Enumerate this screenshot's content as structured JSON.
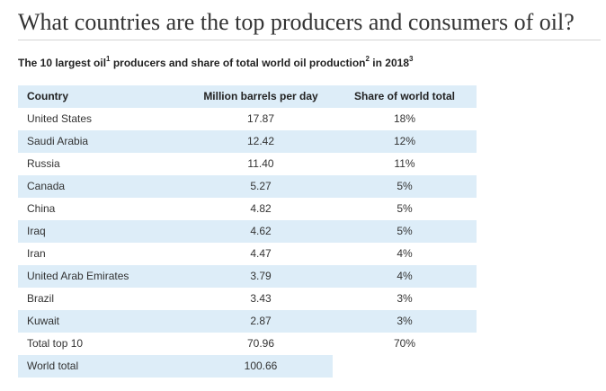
{
  "page": {
    "title": "What countries are the top producers and consumers of oil?"
  },
  "table": {
    "caption": {
      "part1": "The 10 largest oil",
      "sup1": "1",
      "part2": " producers and share of total world oil production",
      "sup2": "2",
      "part3": " in 2018",
      "sup3": "3"
    },
    "headers": {
      "country": "Country",
      "mbpd": "Million barrels per day",
      "share": "Share of world total"
    },
    "rows": [
      {
        "country": "United States",
        "mbpd": "17.87",
        "share": "18%"
      },
      {
        "country": "Saudi Arabia",
        "mbpd": "12.42",
        "share": "12%"
      },
      {
        "country": "Russia",
        "mbpd": "11.40",
        "share": "11%"
      },
      {
        "country": "Canada",
        "mbpd": "5.27",
        "share": "5%"
      },
      {
        "country": "China",
        "mbpd": "4.82",
        "share": "5%"
      },
      {
        "country": "Iraq",
        "mbpd": "4.62",
        "share": "5%"
      },
      {
        "country": "Iran",
        "mbpd": "4.47",
        "share": "4%"
      },
      {
        "country": "United Arab Emirates",
        "mbpd": "3.79",
        "share": "4%"
      },
      {
        "country": "Brazil",
        "mbpd": "3.43",
        "share": "3%"
      },
      {
        "country": "Kuwait",
        "mbpd": "2.87",
        "share": "3%"
      }
    ],
    "total_top10": {
      "label": "Total top 10",
      "mbpd": "70.96",
      "share": "70%"
    },
    "world_total": {
      "label": "World total",
      "mbpd": "100.66"
    }
  },
  "colors": {
    "row_shade": "#ddedf8",
    "rule": "#d5d5d5"
  }
}
